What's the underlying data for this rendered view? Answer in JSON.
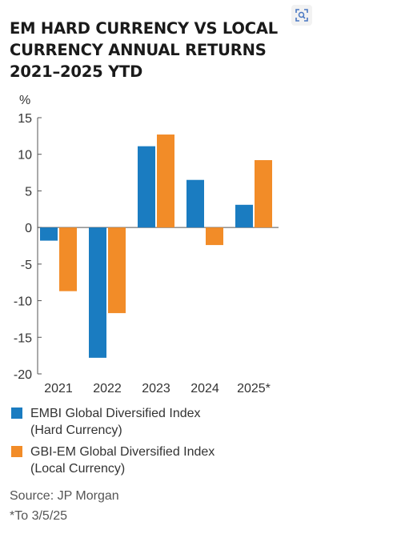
{
  "title_lines": [
    "EM HARD CURRENCY VS LOCAL",
    "CURRENCY ANNUAL RETURNS",
    "2021–2025 YTD"
  ],
  "chart_data": {
    "type": "bar",
    "title": "EM HARD CURRENCY VS LOCAL CURRENCY ANNUAL RETURNS 2021–2025 YTD",
    "ylabel": "%",
    "xlabel": "",
    "categories": [
      "2021",
      "2022",
      "2023",
      "2024",
      "2025*"
    ],
    "series": [
      {
        "name": "EMBI Global Diversified Index (Hard Currency)",
        "color": "#1a7cc1",
        "values": [
          -1.8,
          -17.8,
          11.1,
          6.5,
          3.1
        ]
      },
      {
        "name": "GBI-EM Global Diversified Index (Local Currency)",
        "color": "#f28c28",
        "values": [
          -8.7,
          -11.7,
          12.7,
          -2.4,
          9.2
        ]
      }
    ],
    "ylim": [
      -20,
      15
    ],
    "yticks": [
      15,
      10,
      5,
      0,
      -5,
      -10,
      -15,
      -20
    ],
    "ytick_labels": [
      "15",
      "10",
      "5",
      "0",
      "-5",
      "-10",
      "-15",
      "-20"
    ],
    "grid": false,
    "legend_position": "bottom"
  },
  "legend": [
    {
      "line1": "EMBI Global Diversified Index",
      "line2": "(Hard Currency)",
      "color": "#1a7cc1"
    },
    {
      "line1": "GBI-EM Global Diversified Index",
      "line2": "(Local Currency)",
      "color": "#f28c28"
    }
  ],
  "source": "Source: JP Morgan",
  "footnote": "*To 3/5/25"
}
